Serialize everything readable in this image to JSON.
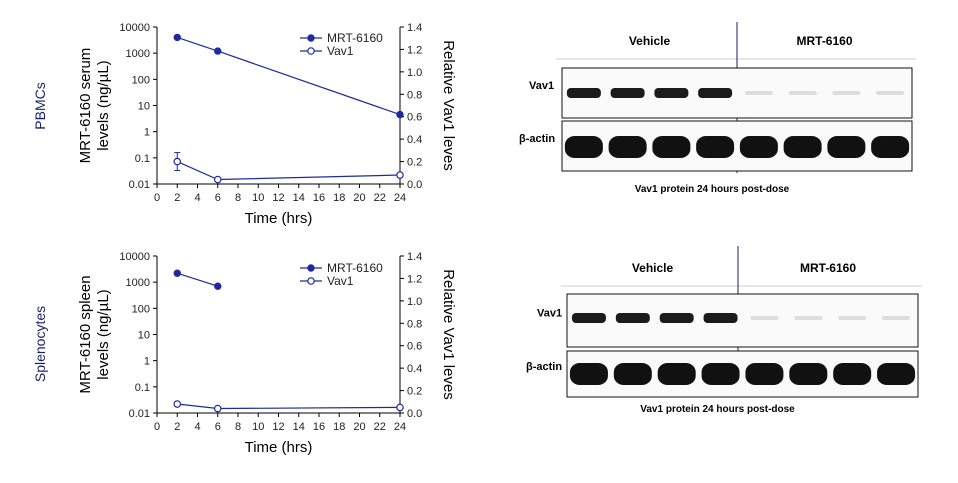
{
  "chart_data": [
    {
      "type": "line",
      "row_label": "PBMCs",
      "ylabel": "MRT-6160 serum levels (ng/µL)",
      "y2label": "Relative Vav1 leves",
      "xlabel": "Time (hrs)",
      "xlim": [
        0,
        24
      ],
      "xticks": [
        0,
        2,
        4,
        6,
        8,
        10,
        12,
        14,
        16,
        18,
        20,
        22,
        24
      ],
      "ylim_log": [
        0.01,
        10000
      ],
      "yticks_log": [
        "0.01",
        "0.1",
        "1",
        "10",
        "100",
        "1000",
        "10000"
      ],
      "y2lim": [
        0,
        1.4
      ],
      "y2ticks": [
        "0.0",
        "0.2",
        "0.4",
        "0.6",
        "0.8",
        "1.0",
        "1.2",
        "1.4"
      ],
      "series": [
        {
          "name": "MRT-6160",
          "axis": "left",
          "marker": "filled",
          "x": [
            2,
            6,
            24
          ],
          "values": [
            4000,
            1200,
            4.5
          ]
        },
        {
          "name": "Vav1",
          "axis": "right",
          "marker": "open",
          "x": [
            2,
            6,
            24
          ],
          "values": [
            0.2,
            0.04,
            0.08
          ],
          "err": [
            0.08,
            0,
            0
          ]
        }
      ]
    },
    {
      "type": "line",
      "row_label": "Splenocytes",
      "ylabel": "MRT-6160 spleen levels (ng/µL)",
      "y2label": "Relative Vav1 leves",
      "xlabel": "Time (hrs)",
      "xlim": [
        0,
        24
      ],
      "xticks": [
        0,
        2,
        4,
        6,
        8,
        10,
        12,
        14,
        16,
        18,
        20,
        22,
        24
      ],
      "ylim_log": [
        0.01,
        10000
      ],
      "yticks_log": [
        "0.01",
        "0.1",
        "1",
        "10",
        "100",
        "1000",
        "10000"
      ],
      "y2lim": [
        0,
        1.4
      ],
      "y2ticks": [
        "0.0",
        "0.2",
        "0.4",
        "0.6",
        "0.8",
        "1.0",
        "1.2",
        "1.4"
      ],
      "series": [
        {
          "name": "MRT-6160",
          "axis": "left",
          "marker": "filled",
          "x": [
            2,
            6
          ],
          "values": [
            2200,
            700
          ]
        },
        {
          "name": "Vav1",
          "axis": "right",
          "marker": "open",
          "x": [
            2,
            6,
            24
          ],
          "values": [
            0.08,
            0.04,
            0.05
          ],
          "err": [
            0,
            0,
            0
          ]
        }
      ]
    }
  ],
  "blots": [
    {
      "group_left": "Vehicle",
      "group_right": "MRT-6160",
      "rows": [
        "Vav1",
        "β-actin"
      ],
      "caption": "Vav1 protein 24 hours post-dose"
    },
    {
      "group_left": "Vehicle",
      "group_right": "MRT-6160",
      "rows": [
        "Vav1",
        "β-actin"
      ],
      "caption": "Vav1 protein 24 hours post-dose"
    }
  ],
  "colors": {
    "series": "#1f2a9e",
    "row_label": "#1a1f6b"
  }
}
